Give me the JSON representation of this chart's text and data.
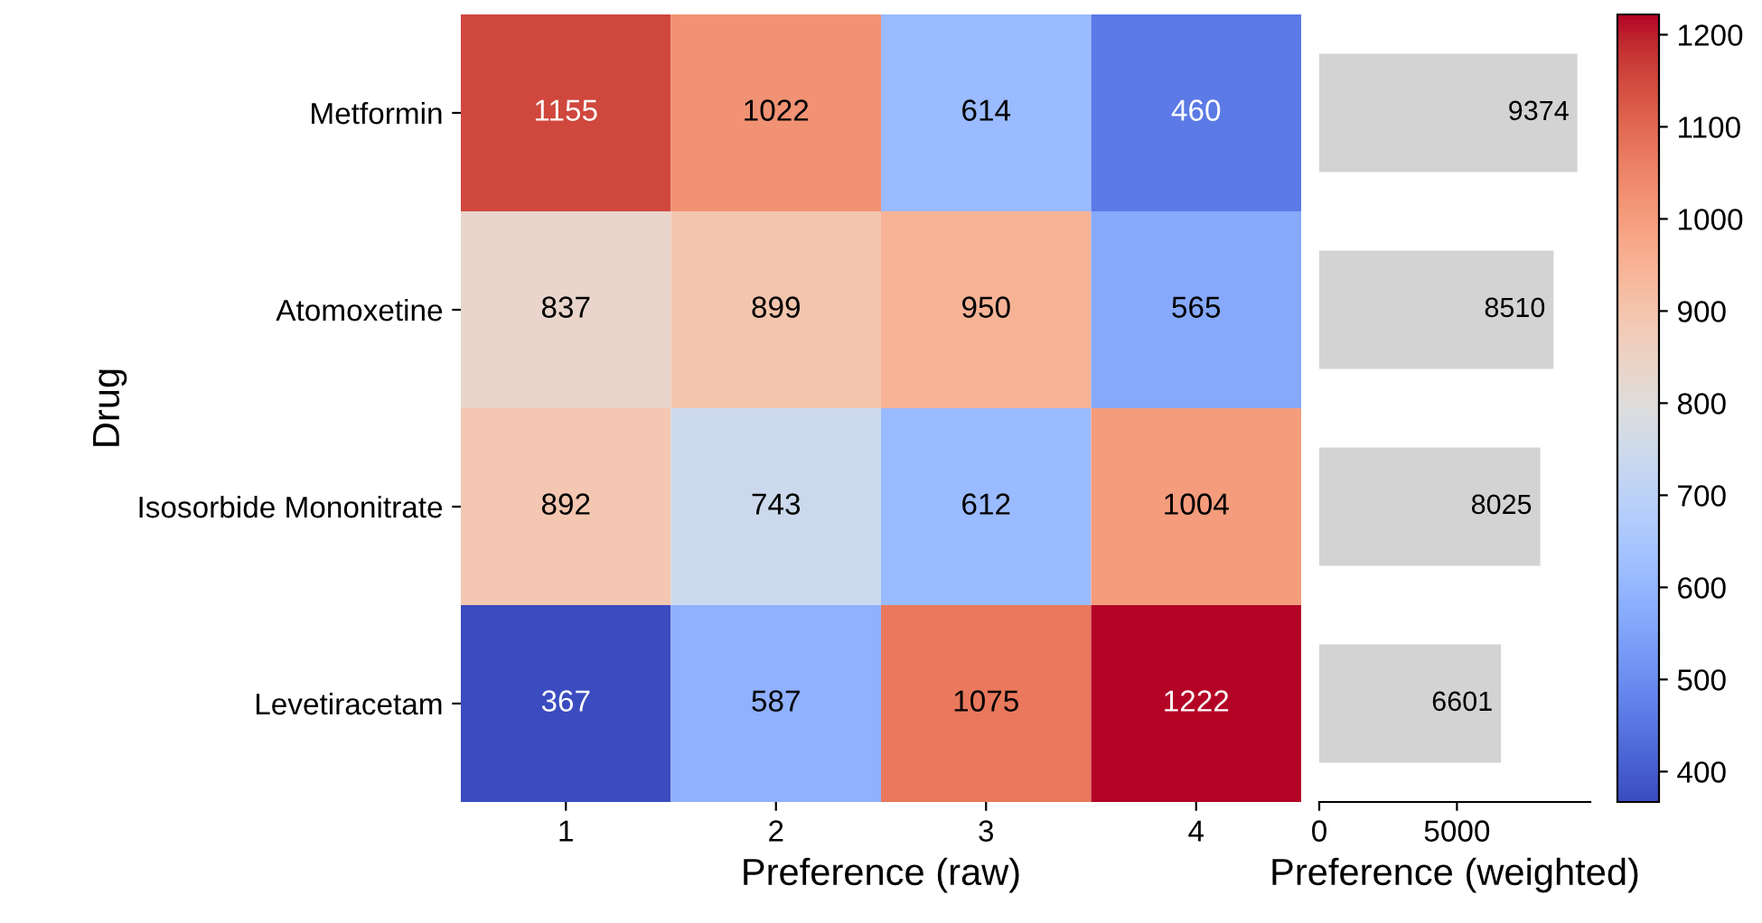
{
  "chart_data": [
    {
      "type": "heatmap",
      "xlabel": "Preference (raw)",
      "ylabel": "Drug",
      "categories": [
        "1",
        "2",
        "3",
        "4"
      ],
      "y_categories": [
        "Metformin",
        "Atomoxetine",
        "Isosorbide Mononitrate",
        "Levetiracetam"
      ],
      "cells": [
        [
          1155,
          1022,
          614,
          460
        ],
        [
          837,
          899,
          950,
          565
        ],
        [
          892,
          743,
          612,
          1004
        ],
        [
          367,
          587,
          1075,
          1222
        ]
      ],
      "data_labels": true,
      "clim": [
        367,
        1222
      ],
      "cticks": [
        400,
        500,
        600,
        700,
        800,
        900,
        1000,
        1100,
        1200
      ]
    },
    {
      "type": "bar",
      "orientation": "horizontal",
      "xlabel": "Preference (weighted)",
      "categories": [
        null,
        null,
        null,
        null
      ],
      "values": [
        9374,
        8510,
        8025,
        6601
      ],
      "color": "#d3d3d3",
      "xlim": [
        0,
        9843
      ],
      "xticks": [
        0,
        5000
      ],
      "data_labels": true,
      "tick_labels": "x"
    }
  ]
}
